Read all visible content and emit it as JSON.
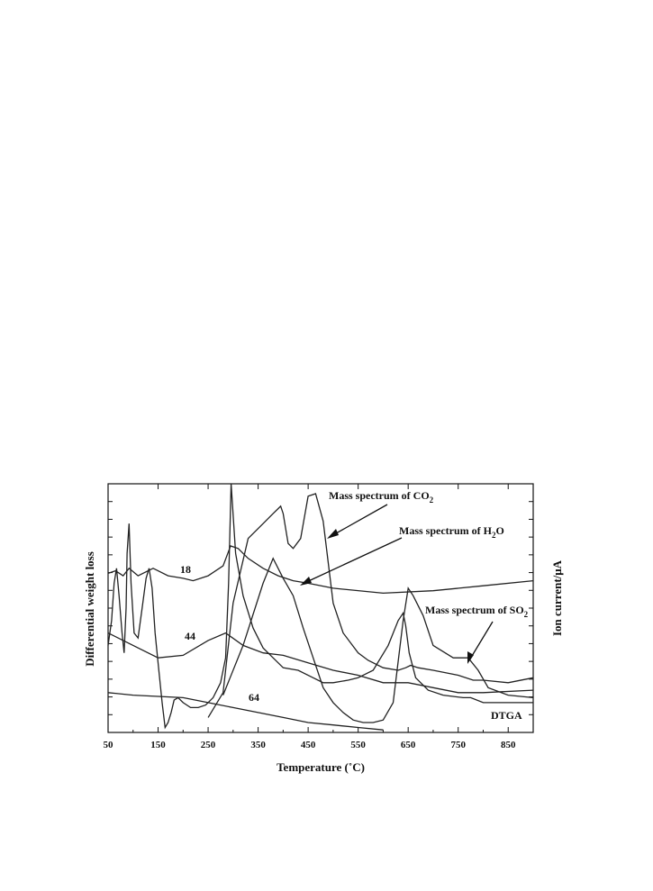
{
  "chart_data": {
    "type": "line",
    "title": "",
    "xlabel": "Temperature (˚C)",
    "ylabel_left": "Differential weight loss",
    "ylabel_right": "Ion current/μA",
    "xlim": [
      50,
      900
    ],
    "xticks": [
      "50",
      "150",
      "250",
      "350",
      "450",
      "550",
      "650",
      "750",
      "850"
    ],
    "grid": false,
    "annotations": [
      {
        "text": "Mass spectrum of CO",
        "sub": "2",
        "points_to_x": 480
      },
      {
        "text": "Mass spectrum of H",
        "sub": "2",
        "tail": "O",
        "points_to_x": 425
      },
      {
        "text": "Mass spectrum of SO",
        "sub": "2",
        "points_to_x": 775
      }
    ],
    "series": [
      {
        "name": "18",
        "x": [
          50,
          65,
          80,
          92,
          110,
          140,
          170,
          200,
          220,
          250,
          280,
          295,
          310,
          330,
          360,
          390,
          420,
          450,
          500,
          600,
          700,
          800,
          900
        ],
        "y": [
          0.64,
          0.65,
          0.63,
          0.66,
          0.63,
          0.66,
          0.63,
          0.62,
          0.61,
          0.63,
          0.67,
          0.75,
          0.74,
          0.7,
          0.66,
          0.63,
          0.61,
          0.6,
          0.58,
          0.56,
          0.57,
          0.59,
          0.61
        ]
      },
      {
        "name": "44",
        "x": [
          50,
          100,
          150,
          200,
          250,
          285,
          320,
          360,
          400,
          450,
          500,
          550,
          600,
          650,
          700,
          750,
          800,
          900
        ],
        "y": [
          0.4,
          0.35,
          0.3,
          0.31,
          0.37,
          0.4,
          0.35,
          0.32,
          0.31,
          0.28,
          0.25,
          0.23,
          0.2,
          0.2,
          0.18,
          0.16,
          0.16,
          0.17
        ]
      },
      {
        "name": "64",
        "x": [
          50,
          100,
          150,
          200,
          250,
          300,
          350,
          400,
          450,
          500,
          550,
          600
        ],
        "y": [
          0.16,
          0.15,
          0.145,
          0.14,
          0.12,
          0.1,
          0.08,
          0.06,
          0.04,
          0.03,
          0.02,
          0.01
        ]
      },
      {
        "name": "DTGA",
        "x": [
          50,
          57,
          62,
          67,
          72,
          78,
          82,
          86,
          88,
          92,
          96,
          102,
          110,
          118,
          126,
          132,
          138,
          144,
          150,
          158,
          164,
          170,
          176,
          182,
          190,
          200,
          215,
          230,
          245,
          260,
          275,
          285,
          291,
          296,
          305,
          320,
          340,
          360,
          380,
          400,
          430,
          460,
          480,
          500,
          530,
          550,
          580,
          610,
          630,
          640,
          645,
          652,
          665,
          690,
          720,
          760,
          775,
          800,
          850,
          900
        ],
        "y": [
          0.35,
          0.45,
          0.6,
          0.66,
          0.55,
          0.4,
          0.32,
          0.5,
          0.72,
          0.84,
          0.6,
          0.4,
          0.38,
          0.5,
          0.62,
          0.66,
          0.58,
          0.4,
          0.28,
          0.12,
          0.02,
          0.04,
          0.08,
          0.13,
          0.14,
          0.12,
          0.1,
          0.1,
          0.11,
          0.14,
          0.2,
          0.3,
          0.6,
          1.0,
          0.72,
          0.55,
          0.42,
          0.34,
          0.3,
          0.26,
          0.25,
          0.22,
          0.2,
          0.2,
          0.21,
          0.22,
          0.25,
          0.35,
          0.45,
          0.48,
          0.43,
          0.32,
          0.22,
          0.17,
          0.15,
          0.14,
          0.14,
          0.12,
          0.12,
          0.12
        ]
      },
      {
        "name": "CO2",
        "x": [
          250,
          280,
          300,
          330,
          360,
          380,
          390,
          395,
          400,
          410,
          420,
          435,
          450,
          465,
          480,
          500,
          520,
          550,
          570,
          600,
          630,
          645,
          655,
          670,
          700,
          750,
          780,
          800,
          850,
          900
        ],
        "y": [
          0.06,
          0.16,
          0.52,
          0.78,
          0.84,
          0.88,
          0.9,
          0.91,
          0.88,
          0.76,
          0.74,
          0.78,
          0.95,
          0.96,
          0.85,
          0.52,
          0.4,
          0.32,
          0.29,
          0.26,
          0.25,
          0.26,
          0.27,
          0.26,
          0.25,
          0.23,
          0.21,
          0.21,
          0.2,
          0.22
        ]
      },
      {
        "name": "SO2",
        "x": [
          280,
          320,
          360,
          380,
          400,
          420,
          440,
          460,
          480,
          500,
          520,
          540,
          560,
          580,
          600,
          620,
          640,
          650,
          660,
          680,
          700,
          740,
          770,
          790,
          810,
          850,
          900
        ],
        "y": [
          0.15,
          0.35,
          0.6,
          0.7,
          0.62,
          0.55,
          0.42,
          0.3,
          0.18,
          0.12,
          0.08,
          0.05,
          0.04,
          0.04,
          0.05,
          0.12,
          0.45,
          0.58,
          0.55,
          0.47,
          0.35,
          0.3,
          0.3,
          0.25,
          0.18,
          0.15,
          0.14
        ]
      }
    ],
    "labels": [
      {
        "text": "18",
        "for": "18"
      },
      {
        "text": "44",
        "for": "44"
      },
      {
        "text": "64",
        "for": "64"
      },
      {
        "text": "DTGA",
        "for": "DTGA"
      }
    ]
  }
}
